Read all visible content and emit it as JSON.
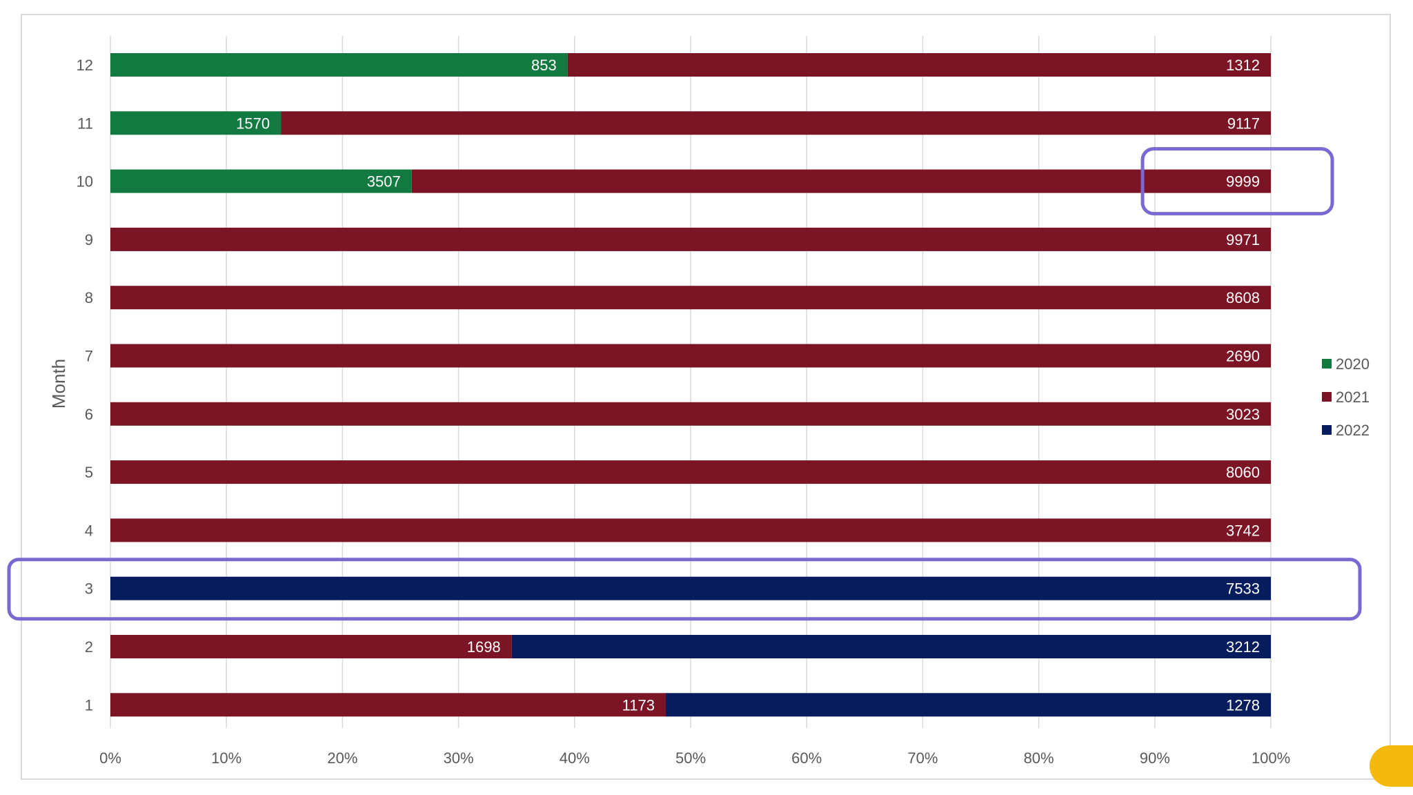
{
  "chart_data": {
    "type": "bar",
    "orientation": "horizontal",
    "stacking": "percent",
    "categories": [
      "1",
      "2",
      "3",
      "4",
      "5",
      "6",
      "7",
      "8",
      "9",
      "10",
      "11",
      "12"
    ],
    "series": [
      {
        "name": "2020",
        "color": "#127a41",
        "values": [
          null,
          null,
          null,
          null,
          null,
          null,
          null,
          null,
          null,
          3507,
          1570,
          853
        ]
      },
      {
        "name": "2021",
        "color": "#7b1424",
        "values": [
          1173,
          1698,
          null,
          3742,
          8060,
          3023,
          2690,
          8608,
          9971,
          9999,
          9117,
          1312
        ]
      },
      {
        "name": "2022",
        "color": "#061c5c",
        "values": [
          1278,
          3212,
          7533,
          null,
          null,
          null,
          null,
          null,
          null,
          null,
          null,
          null
        ]
      }
    ],
    "xlabel": "",
    "ylabel": "Month",
    "xlim": [
      0,
      1
    ],
    "x_ticks": [
      "0%",
      "10%",
      "20%",
      "30%",
      "40%",
      "50%",
      "60%",
      "70%",
      "80%",
      "90%",
      "100%"
    ],
    "grid": "vertical",
    "legend_position": "right",
    "highlights": [
      {
        "category": "10",
        "series": "2021",
        "color": "#7b68d0"
      },
      {
        "category": "3",
        "series": "all",
        "color": "#7b68d0"
      }
    ]
  }
}
